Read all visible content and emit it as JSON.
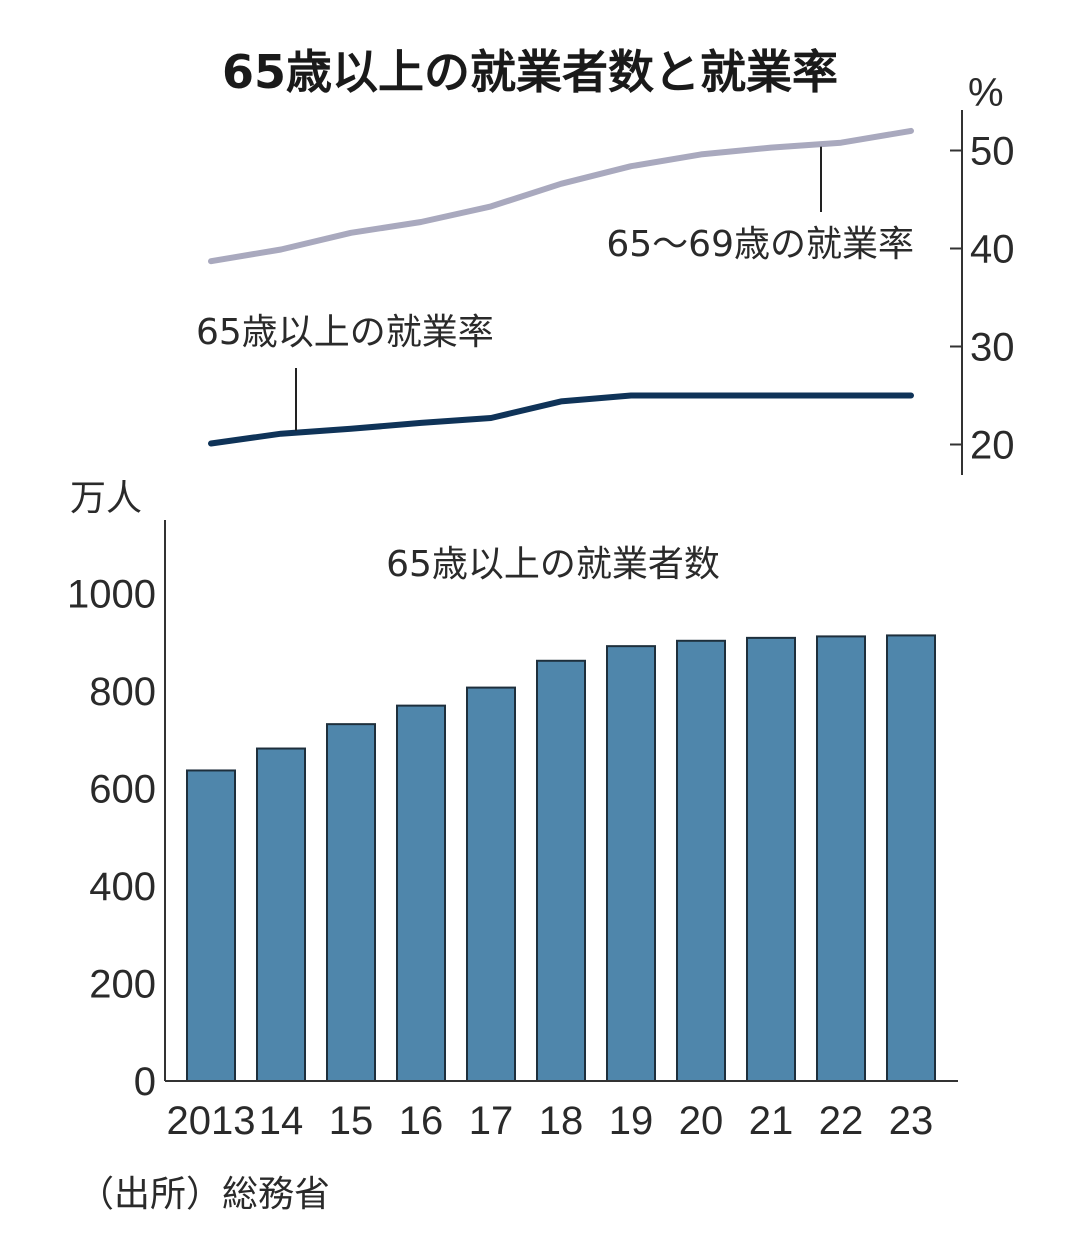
{
  "title": "65歳以上の就業者数と就業率",
  "source": "（出所）総務省",
  "chart_data": [
    {
      "type": "line",
      "y_unit": "%",
      "ylim": [
        20,
        50
      ],
      "y_ticks": [
        "20",
        "30",
        "40",
        "50"
      ],
      "x": [
        "2013",
        "14",
        "15",
        "16",
        "17",
        "18",
        "19",
        "20",
        "21",
        "22",
        "23"
      ],
      "series": [
        {
          "name": "65～69歳の就業率",
          "color": "#a9a9be",
          "values": [
            38.7,
            39.9,
            41.6,
            42.7,
            44.3,
            46.6,
            48.4,
            49.6,
            50.3,
            50.8,
            52.0
          ]
        },
        {
          "name": "65歳以上の就業率",
          "color": "#0f3358",
          "values": [
            20.1,
            21.1,
            21.6,
            22.2,
            22.7,
            24.4,
            25.0,
            25.0,
            25.0,
            25.0,
            25.0
          ]
        }
      ],
      "axis_position": "right",
      "grid": false
    },
    {
      "type": "bar",
      "title": "65歳以上の就業者数",
      "y_unit": "万人",
      "ylim": [
        0,
        1100
      ],
      "y_ticks": [
        "0",
        "200",
        "400",
        "600",
        "800",
        "1000"
      ],
      "categories": [
        "2013",
        "14",
        "15",
        "16",
        "17",
        "18",
        "19",
        "20",
        "21",
        "22",
        "23"
      ],
      "values": [
        637,
        682,
        732,
        770,
        807,
        862,
        892,
        903,
        909,
        912,
        914
      ],
      "bar_color": "#4f86ab",
      "grid": false
    }
  ]
}
